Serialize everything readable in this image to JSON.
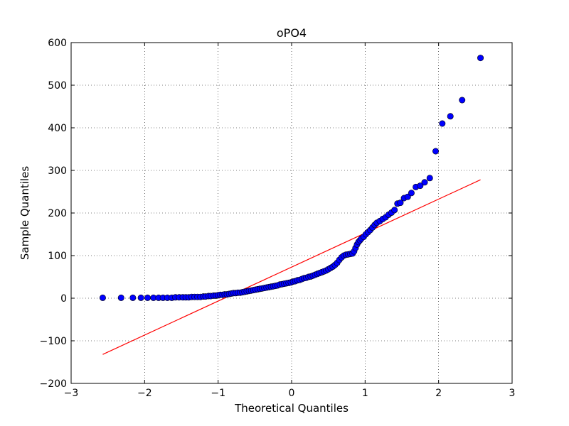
{
  "chart_data": {
    "type": "scatter",
    "title": "oPO4",
    "xlabel": "Theoretical Quantiles",
    "ylabel": "Sample Quantiles",
    "xlim": [
      -3,
      3
    ],
    "ylim": [
      -200,
      600
    ],
    "xticks": [
      -3,
      -2,
      -1,
      0,
      1,
      2,
      3
    ],
    "yticks": [
      -200,
      -100,
      0,
      100,
      200,
      300,
      400,
      500,
      600
    ],
    "xtick_labels": [
      "−3",
      "−2",
      "−1",
      "0",
      "1",
      "2",
      "3"
    ],
    "ytick_labels": [
      "−200",
      "−100",
      "0",
      "100",
      "200",
      "300",
      "400",
      "500",
      "600"
    ],
    "grid": true,
    "marker_color": "#0000ff",
    "marker_edge_color": "#000000",
    "line_color": "#ff0000",
    "reference_line": {
      "x": [
        -2.57,
        2.57
      ],
      "y": [
        -132,
        278
      ]
    },
    "points": [
      [
        -2.57,
        1
      ],
      [
        -2.32,
        1
      ],
      [
        -2.16,
        1
      ],
      [
        -2.05,
        1
      ],
      [
        -1.96,
        1
      ],
      [
        -1.88,
        1
      ],
      [
        -1.81,
        1
      ],
      [
        -1.75,
        1
      ],
      [
        -1.69,
        1
      ],
      [
        -1.63,
        1
      ],
      [
        -1.58,
        2
      ],
      [
        -1.53,
        2
      ],
      [
        -1.48,
        2
      ],
      [
        -1.44,
        2
      ],
      [
        -1.4,
        2
      ],
      [
        -1.36,
        3
      ],
      [
        -1.32,
        3
      ],
      [
        -1.28,
        3
      ],
      [
        -1.24,
        3
      ],
      [
        -1.2,
        4
      ],
      [
        -1.17,
        4
      ],
      [
        -1.13,
        5
      ],
      [
        -1.1,
        5
      ],
      [
        -1.06,
        6
      ],
      [
        -1.03,
        6
      ],
      [
        -1.0,
        7
      ],
      [
        -0.97,
        8
      ],
      [
        -0.94,
        8
      ],
      [
        -0.91,
        9
      ],
      [
        -0.88,
        9
      ],
      [
        -0.85,
        10
      ],
      [
        -0.82,
        11
      ],
      [
        -0.79,
        12
      ],
      [
        -0.76,
        12
      ],
      [
        -0.73,
        13
      ],
      [
        -0.7,
        13
      ],
      [
        -0.67,
        14
      ],
      [
        -0.64,
        15
      ],
      [
        -0.61,
        16
      ],
      [
        -0.58,
        17
      ],
      [
        -0.55,
        18
      ],
      [
        -0.52,
        19
      ],
      [
        -0.49,
        20
      ],
      [
        -0.46,
        21
      ],
      [
        -0.43,
        22
      ],
      [
        -0.4,
        23
      ],
      [
        -0.37,
        24
      ],
      [
        -0.34,
        25
      ],
      [
        -0.31,
        26
      ],
      [
        -0.28,
        27
      ],
      [
        -0.25,
        28
      ],
      [
        -0.22,
        29
      ],
      [
        -0.19,
        30
      ],
      [
        -0.16,
        32
      ],
      [
        -0.13,
        33
      ],
      [
        -0.1,
        34
      ],
      [
        -0.07,
        35
      ],
      [
        -0.04,
        36
      ],
      [
        -0.01,
        37
      ],
      [
        0.02,
        39
      ],
      [
        0.05,
        40
      ],
      [
        0.08,
        42
      ],
      [
        0.11,
        43
      ],
      [
        0.14,
        45
      ],
      [
        0.17,
        47
      ],
      [
        0.2,
        48
      ],
      [
        0.23,
        50
      ],
      [
        0.26,
        51
      ],
      [
        0.29,
        53
      ],
      [
        0.32,
        55
      ],
      [
        0.35,
        57
      ],
      [
        0.38,
        59
      ],
      [
        0.41,
        61
      ],
      [
        0.44,
        63
      ],
      [
        0.47,
        65
      ],
      [
        0.5,
        68
      ],
      [
        0.53,
        71
      ],
      [
        0.56,
        74
      ],
      [
        0.59,
        78
      ],
      [
        0.62,
        83
      ],
      [
        0.65,
        90
      ],
      [
        0.68,
        96
      ],
      [
        0.71,
        100
      ],
      [
        0.74,
        102
      ],
      [
        0.77,
        103
      ],
      [
        0.8,
        104
      ],
      [
        0.83,
        105
      ],
      [
        0.85,
        110
      ],
      [
        0.87,
        118
      ],
      [
        0.89,
        126
      ],
      [
        0.91,
        132
      ],
      [
        0.93,
        136
      ],
      [
        0.95,
        140
      ],
      [
        0.98,
        144
      ],
      [
        1.01,
        150
      ],
      [
        1.04,
        155
      ],
      [
        1.07,
        160
      ],
      [
        1.1,
        166
      ],
      [
        1.13,
        172
      ],
      [
        1.16,
        177
      ],
      [
        1.2,
        181
      ],
      [
        1.24,
        186
      ],
      [
        1.28,
        190
      ],
      [
        1.32,
        196
      ],
      [
        1.36,
        201
      ],
      [
        1.4,
        207
      ],
      [
        1.44,
        222
      ],
      [
        1.48,
        224
      ],
      [
        1.53,
        235
      ],
      [
        1.58,
        238
      ],
      [
        1.63,
        247
      ],
      [
        1.69,
        261
      ],
      [
        1.75,
        264
      ],
      [
        1.81,
        272
      ],
      [
        1.88,
        282
      ],
      [
        1.96,
        345
      ],
      [
        2.05,
        410
      ],
      [
        2.16,
        427
      ],
      [
        2.32,
        465
      ],
      [
        2.57,
        564
      ]
    ]
  }
}
